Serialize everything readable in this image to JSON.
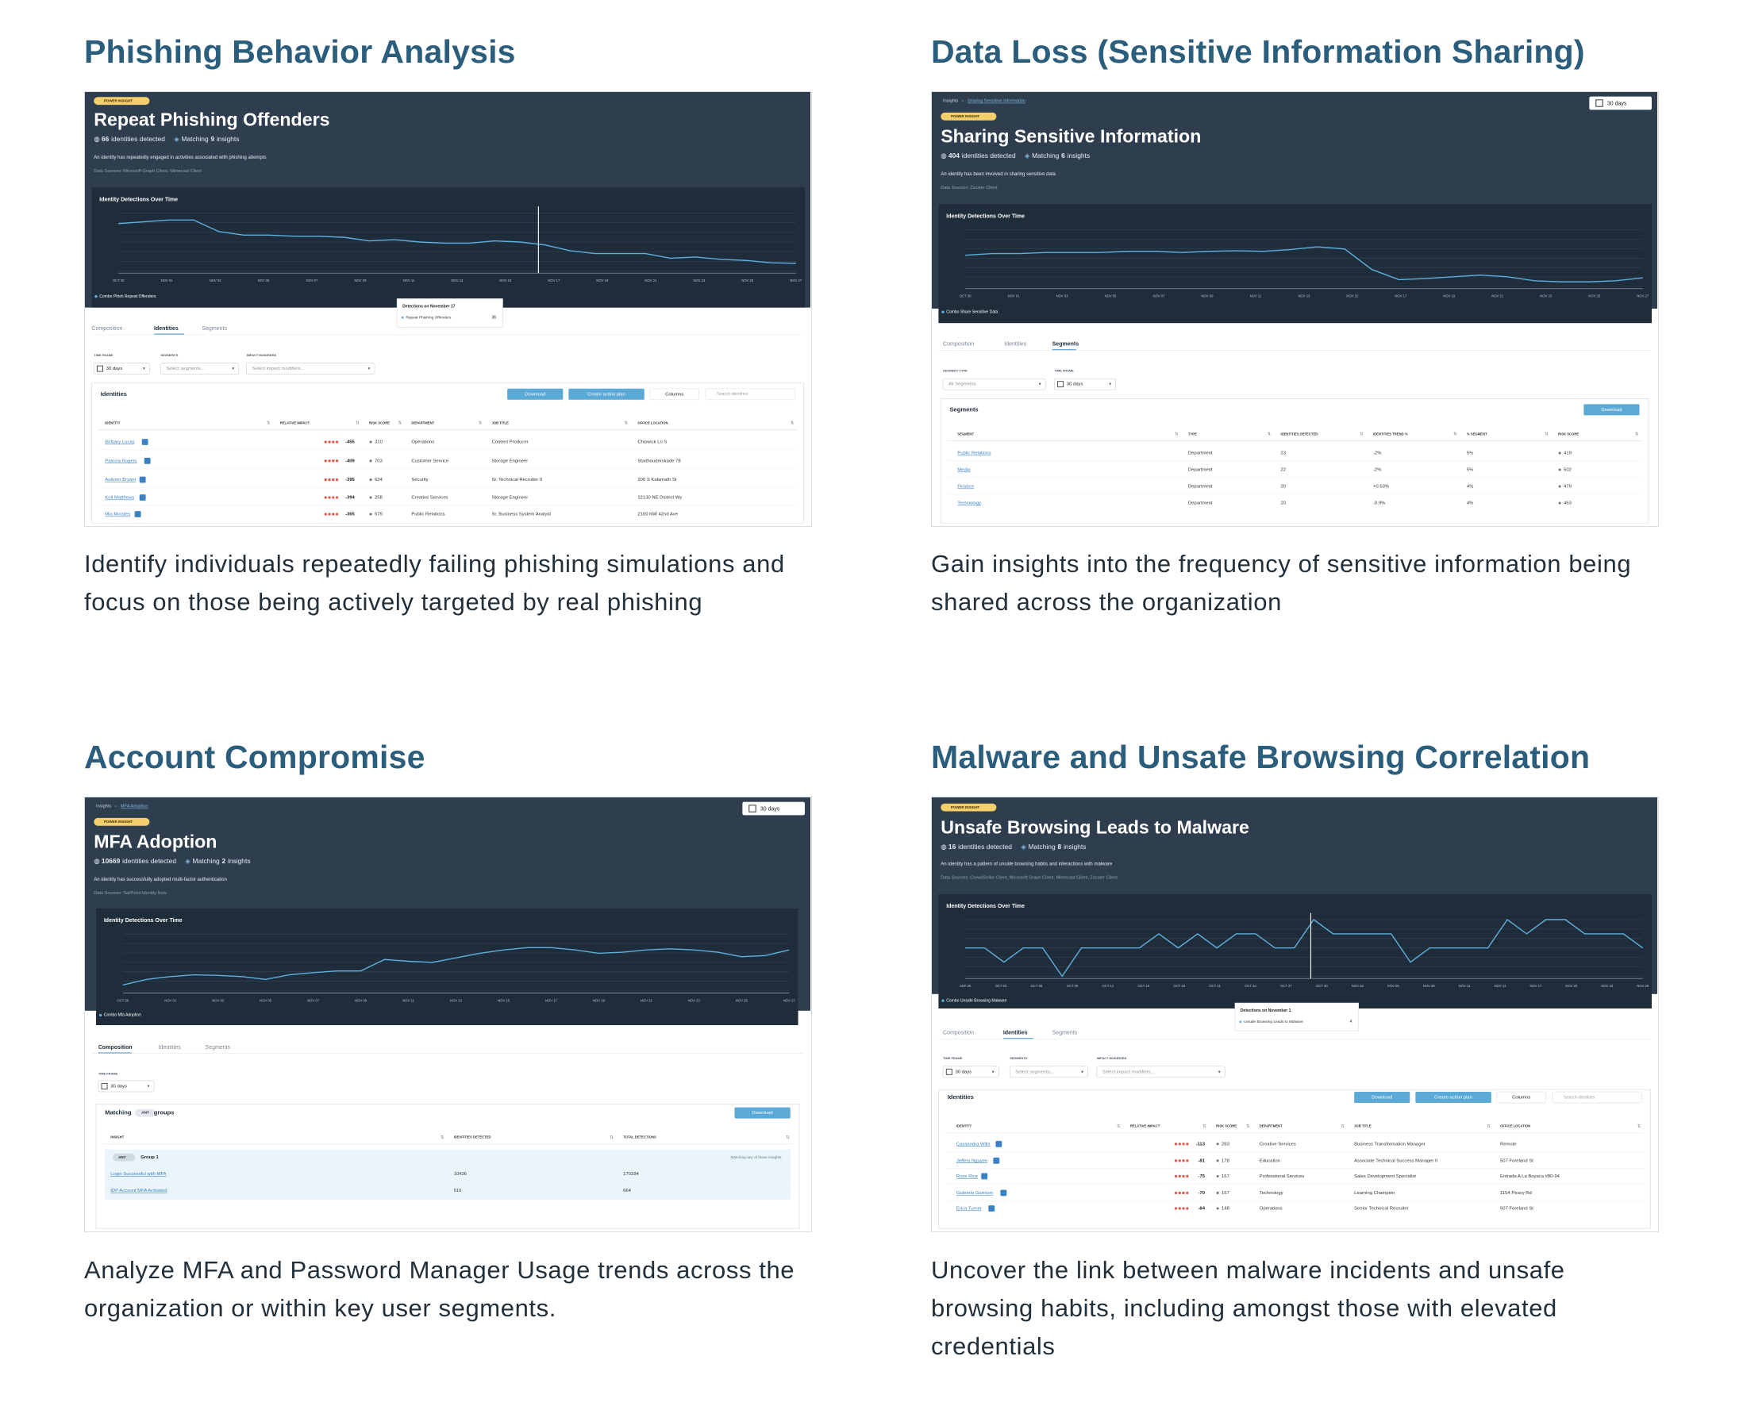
{
  "sections": [
    {
      "title": "Phishing Behavior Analysis",
      "description": "Identify individuals repeatedly failing phishing simulations and focus on those being actively targeted by real phishing",
      "screenshot": {
        "badge": "POWER INSIGHT",
        "title": "Repeat Phishing Offenders",
        "detected_count": "66",
        "detected_label": "identities detected",
        "matching_label": "Matching",
        "matching_count": "9",
        "matching_suffix": "insights",
        "description": "An identity has repeatedly engaged in activities associated with phishing attempts",
        "sources": "Data Sources: Microsoft Graph Client, Mimecast Client",
        "chart_title": "Identity Detections Over Time",
        "x_labels": [
          "OCT 30",
          "NOV 01",
          "NOV 03",
          "NOV 05",
          "NOV 07",
          "NOV 09",
          "NOV 11",
          "NOV 13",
          "NOV 15",
          "NOV 17",
          "NOV 19",
          "NOV 21",
          "NOV 23",
          "NOV 25",
          "NOV 27"
        ],
        "legend": "Combo Phish Repeat Offenders",
        "tooltip": {
          "title": "Detections on November 17",
          "label": "Repeat Phishing Offenders",
          "value": "36"
        },
        "tabs": [
          "Composition",
          "Identities",
          "Segments"
        ],
        "filters": [
          {
            "label": "TIME FRAME",
            "value": "30 days"
          },
          {
            "label": "SEGMENTS",
            "value": "Select segments..."
          },
          {
            "label": "IMPACT MODIFIERS",
            "value": "Select impact modifiers..."
          }
        ],
        "table": {
          "title": "Identities",
          "buttons": [
            "Download",
            "Create action plan",
            "Columns"
          ],
          "search": "Search identities",
          "headers": [
            "IDENTITY",
            "RELATIVE IMPACT",
            "RISK SCORE",
            "DEPARTMENT",
            "JOB TITLE",
            "OFFICE LOCATION"
          ],
          "rows": [
            [
              "Brittany Lucas",
              "-455",
              "310",
              "Operations",
              "Content Producer",
              "Chiswick Ln S"
            ],
            [
              "Patricia Rogers",
              "-409",
              "703",
              "Customer Service",
              "Storage Engineer",
              "Stadhouderskade 78"
            ],
            [
              "Autumn Bryant",
              "-395",
              "634",
              "Security",
              "Sr. Technical Recruiter II",
              "200 S Kalamath St"
            ],
            [
              "Kolt Matthews",
              "-394",
              "258",
              "Creative Services",
              "Storage Engineer",
              "12130 NE District Wy"
            ],
            [
              "Mia Morales",
              "-365",
              "575",
              "Public Relations",
              "Sr. Business System Analyst",
              "2100 NW 42nd Ave"
            ]
          ]
        }
      }
    },
    {
      "title": "Data Loss (Sensitive Information Sharing)",
      "description": "Gain insights into the frequency of sensitive information being shared across the organization",
      "screenshot": {
        "breadcrumb": [
          "Insights",
          "Sharing Sensitive Information"
        ],
        "time_button": "30 days",
        "badge": "POWER INSIGHT",
        "title": "Sharing Sensitive Information",
        "detected_count": "404",
        "detected_label": "identities detected",
        "matching_label": "Matching",
        "matching_count": "6",
        "matching_suffix": "insights",
        "description": "An identity has been involved in sharing sensitive data",
        "sources": "Data Sources: Zscaler Client",
        "chart_title": "Identity Detections Over Time",
        "x_labels": [
          "OCT 30",
          "NOV 01",
          "NOV 03",
          "NOV 05",
          "NOV 07",
          "NOV 09",
          "NOV 11",
          "NOV 13",
          "NOV 15",
          "NOV 17",
          "NOV 19",
          "NOV 21",
          "NOV 23",
          "NOV 25",
          "NOV 27"
        ],
        "legend": "Combo Share Sensitive Data",
        "tabs": [
          "Composition",
          "Identities",
          "Segments"
        ],
        "filters": [
          {
            "label": "SEGMENT TYPE",
            "value": "All Segments"
          },
          {
            "label": "TIME FRAME",
            "value": "30 days"
          }
        ],
        "table": {
          "title": "Segments",
          "buttons": [
            "Download"
          ],
          "headers": [
            "SEGMENT",
            "TYPE",
            "IDENTITIES DETECTED",
            "IDENTITIES TREND %",
            "% SEGMENT",
            "RISK SCORE"
          ],
          "rows": [
            [
              "Public Relations",
              "Department",
              "23",
              "-2%",
              "5%",
              "419"
            ],
            [
              "Media",
              "Department",
              "22",
              "-2%",
              "5%",
              "502"
            ],
            [
              "Finance",
              "Department",
              "20",
              "+0.63%",
              "4%",
              "479"
            ],
            [
              "Technology",
              "Department",
              "20",
              "-0.9%",
              "4%",
              "463"
            ]
          ]
        }
      }
    },
    {
      "title": "Account Compromise",
      "description": "Analyze MFA and Password Manager Usage trends across the organization or within key user segments.",
      "screenshot": {
        "breadcrumb": [
          "Insights",
          "MFA Adoption"
        ],
        "time_button": "30 days",
        "badge": "POWER INSIGHT",
        "title": "MFA Adoption",
        "detected_count": "10669",
        "detected_label": "identities detected",
        "matching_label": "Matching",
        "matching_count": "2",
        "matching_suffix": "insights",
        "description": "An identity has successfully adopted multi-factor authentication",
        "sources": "Data Sources: SailPoint Identity Now",
        "chart_title": "Identity Detections Over Time",
        "x_labels": [
          "OCT 30",
          "NOV 01",
          "NOV 03",
          "NOV 05",
          "NOV 07",
          "NOV 09",
          "NOV 11",
          "NOV 13",
          "NOV 15",
          "NOV 17",
          "NOV 19",
          "NOV 21",
          "NOV 23",
          "NOV 25",
          "NOV 27"
        ],
        "legend": "Combo Mfa Adoption",
        "tabs": [
          "Composition",
          "Identities",
          "Segments"
        ],
        "filters": [
          {
            "label": "TIME FRAME",
            "value": "30 days"
          }
        ],
        "table": {
          "title": "Matching",
          "title_chip": "ANY",
          "title_suffix": "groups",
          "buttons": [
            "Download"
          ],
          "headers": [
            "INSIGHT",
            "IDENTITIES DETECTED",
            "TOTAL DETECTIONS"
          ],
          "group": {
            "chip": "ANY",
            "name": "Group 1",
            "note": "Matching any of these insights"
          },
          "rows": [
            [
              "Login Successful with MFA",
              "10436",
              "170184"
            ],
            [
              "IDP Account MFA Activated",
              "516",
              "664"
            ]
          ]
        }
      }
    },
    {
      "title": "Malware and Unsafe Browsing Correlation",
      "description": "Uncover the link between malware incidents and unsafe browsing habits, including amongst those with elevated credentials",
      "screenshot": {
        "badge": "POWER INSIGHT",
        "title": "Unsafe Browsing Leads to Malware",
        "detected_count": "16",
        "detected_label": "identities detected",
        "matching_label": "Matching",
        "matching_count": "8",
        "matching_suffix": "insights",
        "description": "An identity has a pattern of unsafe browsing habits and interactions with malware",
        "sources": "Data Sources: CrowdStrike Client, Microsoft Graph Client, Mimecast Client, Zscaler Client",
        "chart_title": "Identity Detections Over Time",
        "x_labels": [
          "SEP 30",
          "OCT 03",
          "OCT 06",
          "OCT 09",
          "OCT 12",
          "OCT 15",
          "OCT 18",
          "OCT 21",
          "OCT 24",
          "OCT 27",
          "OCT 30",
          "NOV 02",
          "NOV 05",
          "NOV 08",
          "NOV 11",
          "NOV 14",
          "NOV 17",
          "NOV 20",
          "NOV 23",
          "NOV 26"
        ],
        "legend": "Combo Unsafe Browsing Malware",
        "tooltip": {
          "title": "Detections on November 1",
          "label": "Unsafe Browsing Leads to Malware",
          "value": "4"
        },
        "tabs": [
          "Composition",
          "Identities",
          "Segments"
        ],
        "filters": [
          {
            "label": "TIME FRAME",
            "value": "30 days"
          },
          {
            "label": "SEGMENTS",
            "value": "Select segments..."
          },
          {
            "label": "IMPACT MODIFIERS",
            "value": "Select impact modifiers..."
          }
        ],
        "table": {
          "title": "Identities",
          "buttons": [
            "Download",
            "Create action plan",
            "Columns"
          ],
          "search": "Search identities",
          "headers": [
            "IDENTITY",
            "RELATIVE IMPACT",
            "RISK SCORE",
            "DEPARTMENT",
            "JOB TITLE",
            "OFFICE LOCATION"
          ],
          "rows": [
            [
              "Cassandra Wills",
              "-113",
              "283",
              "Creative Services",
              "Business Transformation Manager",
              "Remote"
            ],
            [
              "Jeffery Nguyen",
              "-81",
              "178",
              "Education",
              "Associate Technical Success Manager II",
              "507 Foreland St"
            ],
            [
              "Rose Rice",
              "-75",
              "167",
              "Professional Services",
              "Sales Development Specialist",
              "Entrada A La Boyaca #80-94"
            ],
            [
              "Gabriela Garrison",
              "-70",
              "157",
              "Technology",
              "Learning Champion",
              "1154 Peavy Rd"
            ],
            [
              "Erica Turner",
              "-64",
              "148",
              "Operations",
              "Senior Technical Recruiter",
              "507 Foreland St"
            ]
          ]
        }
      }
    }
  ]
}
